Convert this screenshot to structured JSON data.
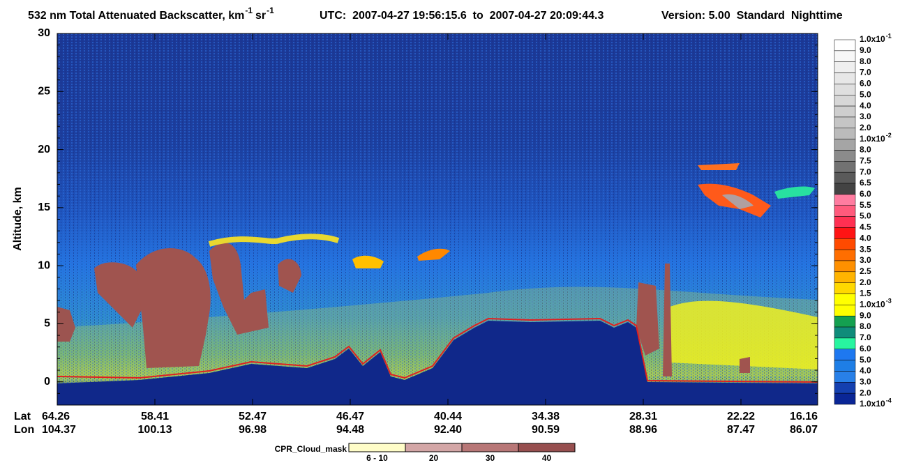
{
  "chart_data": {
    "type": "curtain",
    "title": "532 nm Total Attenuated Backscatter, km",
    "title_sup": "-1",
    "title_unit": "sr",
    "title_unit_sup": "-1",
    "utc": "UTC:  2007-04-27 19:56:15.6  to  2007-04-27 20:09:44.3",
    "version": "Version: 5.00  Standard  Nighttime",
    "ylabel": "Altitude, km",
    "ylim": [
      -2,
      30
    ],
    "yticks": [
      0,
      5,
      10,
      15,
      20,
      25,
      30
    ],
    "lat_label": "Lat",
    "lon_label": "Lon",
    "lat": [
      "64.26",
      "58.41",
      "52.47",
      "46.47",
      "40.44",
      "34.38",
      "28.31",
      "22.22",
      "16.16"
    ],
    "lon": [
      "104.37",
      "100.13",
      "96.98",
      "94.48",
      "92.40",
      "90.59",
      "88.96",
      "87.47",
      "86.07"
    ],
    "colorbar": {
      "labels": [
        {
          "text": "1.0x10",
          "exp": "-1"
        },
        {
          "text": "9.0"
        },
        {
          "text": "8.0"
        },
        {
          "text": "7.0"
        },
        {
          "text": "6.0"
        },
        {
          "text": "5.0"
        },
        {
          "text": "4.0"
        },
        {
          "text": "3.0"
        },
        {
          "text": "2.0"
        },
        {
          "text": "1.0x10",
          "exp": "-2"
        },
        {
          "text": "8.0"
        },
        {
          "text": "7.5"
        },
        {
          "text": "7.0"
        },
        {
          "text": "6.5"
        },
        {
          "text": "6.0"
        },
        {
          "text": "5.5"
        },
        {
          "text": "5.0"
        },
        {
          "text": "4.5"
        },
        {
          "text": "4.0"
        },
        {
          "text": "3.5"
        },
        {
          "text": "3.0"
        },
        {
          "text": "2.5"
        },
        {
          "text": "2.0"
        },
        {
          "text": "1.5"
        },
        {
          "text": "1.0x10",
          "exp": "-3"
        },
        {
          "text": "9.0"
        },
        {
          "text": "8.0"
        },
        {
          "text": "7.0"
        },
        {
          "text": "6.0"
        },
        {
          "text": "5.0"
        },
        {
          "text": "4.0"
        },
        {
          "text": "3.0"
        },
        {
          "text": "2.0"
        },
        {
          "text": "1.0x10",
          "exp": "-4"
        }
      ],
      "colors": [
        "#ffffff",
        "#f7f7f7",
        "#efefef",
        "#e7e7e7",
        "#dfdfdf",
        "#d7d7d7",
        "#cecece",
        "#c5c5c5",
        "#bbbbbb",
        "#a5a5a5",
        "#8b8b8b",
        "#727272",
        "#5a5a5a",
        "#434343",
        "#ff7ca0",
        "#ff5a7c",
        "#ff3052",
        "#ff1414",
        "#ff4a00",
        "#ff6e00",
        "#ff9000",
        "#ffb400",
        "#ffd800",
        "#ffff00",
        "#ffff00",
        "#14a050",
        "#0f8c7a",
        "#28f5a0",
        "#1e78f0",
        "#1e7ee6",
        "#2880e8",
        "#1440b0",
        "#0a2696"
      ]
    },
    "cpr_label": "CPR_Cloud_mask",
    "cpr": [
      {
        "label": "6 - 10",
        "color": "#fffdc8"
      },
      {
        "label": "20",
        "color": "#d3a6a6"
      },
      {
        "label": "30",
        "color": "#b87777"
      },
      {
        "label": "40",
        "color": "#974f4f"
      }
    ]
  }
}
